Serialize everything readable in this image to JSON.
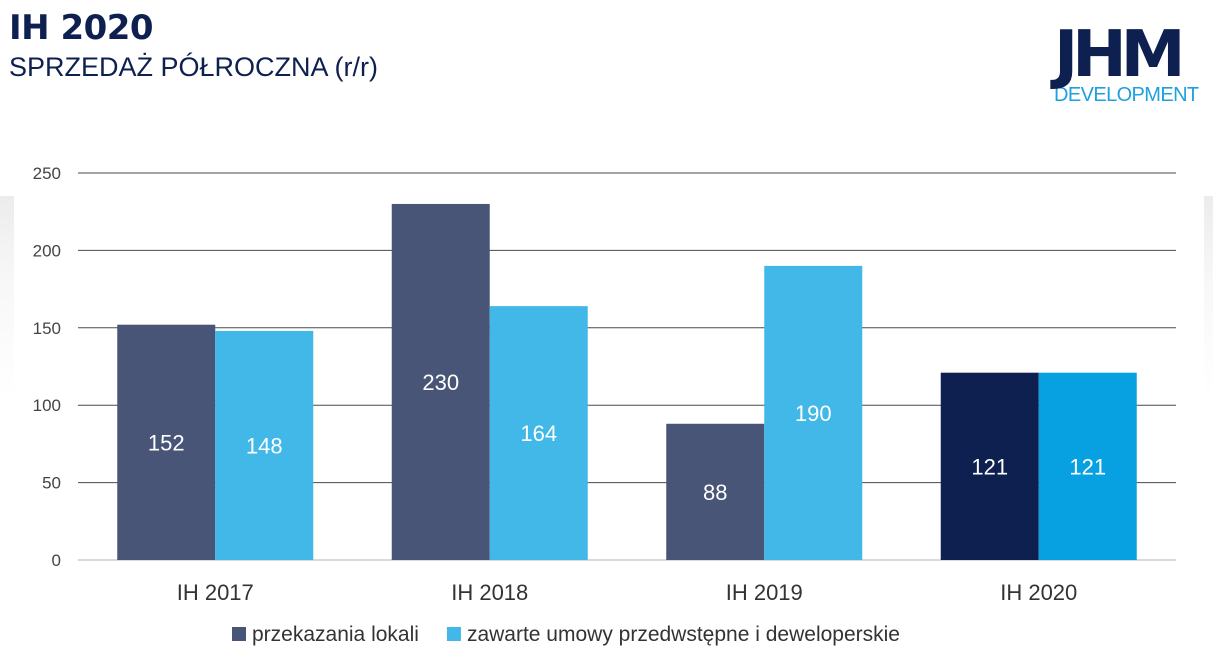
{
  "header": {
    "title": "IH 2020",
    "subtitle": "SPRZEDAŻ PÓŁROCZNA (r/r)"
  },
  "logo": {
    "main": "JHM",
    "sub": "DEVELOPMENT",
    "colors": {
      "main": "#0e2050",
      "sub": "#1e9fe0"
    }
  },
  "chart_data": {
    "type": "bar",
    "categories": [
      "IH 2017",
      "IH 2018",
      "IH 2019",
      "IH 2020"
    ],
    "series": [
      {
        "name": "przekazania lokali",
        "values": [
          152,
          230,
          88,
          121
        ],
        "color": "#485577",
        "highlight_color": "#0e2050"
      },
      {
        "name": "zawarte umowy przedwstępne i deweloperskie",
        "values": [
          148,
          164,
          190,
          121
        ],
        "color": "#41b8e8",
        "highlight_color": "#07a1e2"
      }
    ],
    "highlight_category": "IH 2020",
    "ylim": [
      0,
      250
    ],
    "yticks": [
      0,
      50,
      100,
      150,
      200,
      250
    ],
    "grid": true,
    "legend_position": "bottom",
    "data_labels": true
  }
}
